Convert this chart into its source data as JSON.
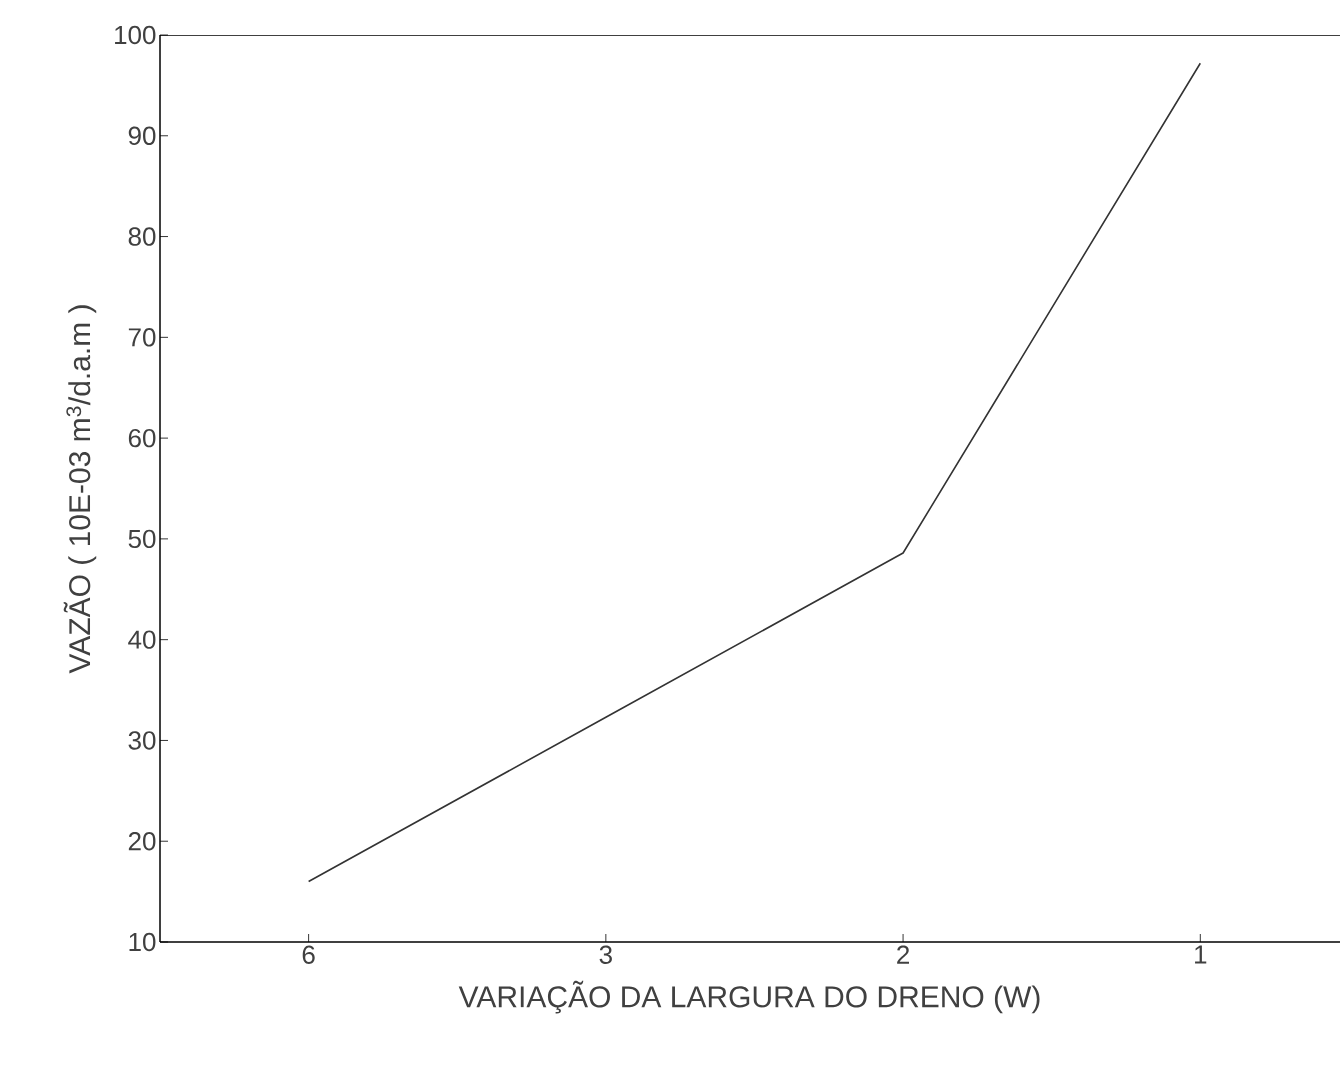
{
  "chart_data": {
    "type": "line",
    "xlabel": "VARIAÇÃO DA LARGURA DO DRENO (W)",
    "ylabel": "VAZÃO ( 10E-03 m$^{3}$/d.a.m )",
    "categories": [
      "6",
      "3",
      "2",
      "1"
    ],
    "series": [
      {
        "color": "#333333",
        "values": [
          16,
          32.3,
          48.6,
          97.2
        ]
      }
    ],
    "ylim": [
      10,
      100
    ],
    "yticks": [
      10,
      20,
      30,
      40,
      50,
      60,
      70,
      80,
      90,
      100
    ]
  }
}
